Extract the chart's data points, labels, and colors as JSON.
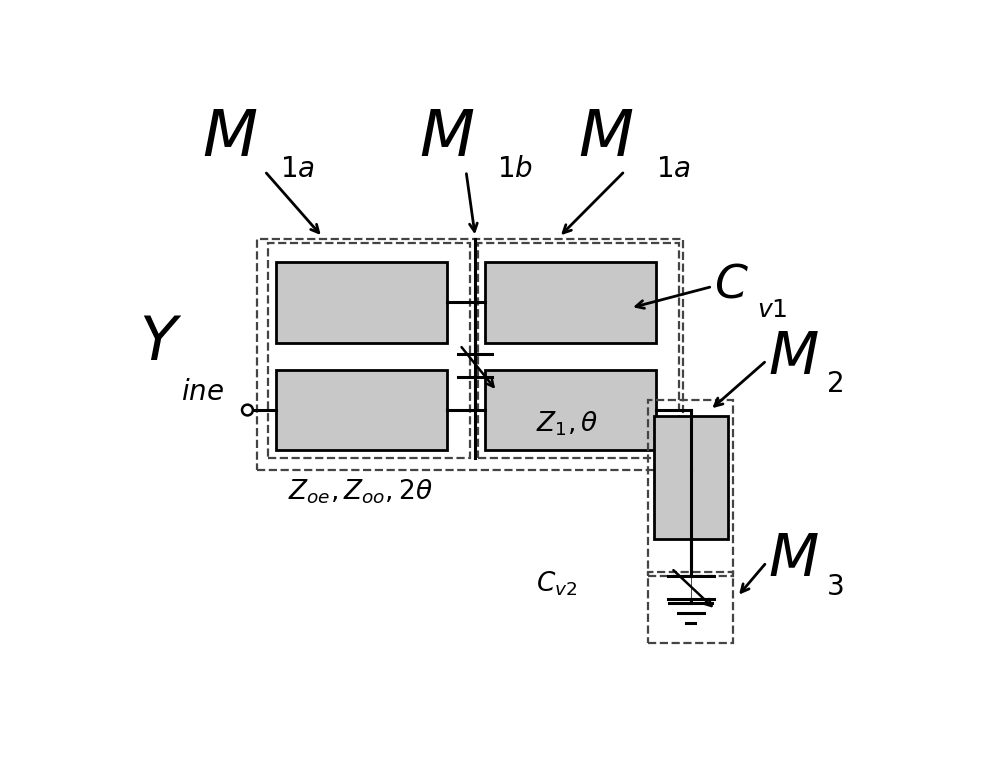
{
  "fig_width": 10.0,
  "fig_height": 7.7,
  "bg_color": "#ffffff",
  "gray_fill": "#c8c8c8",
  "black": "#000000",
  "dashed_color": "#444444"
}
